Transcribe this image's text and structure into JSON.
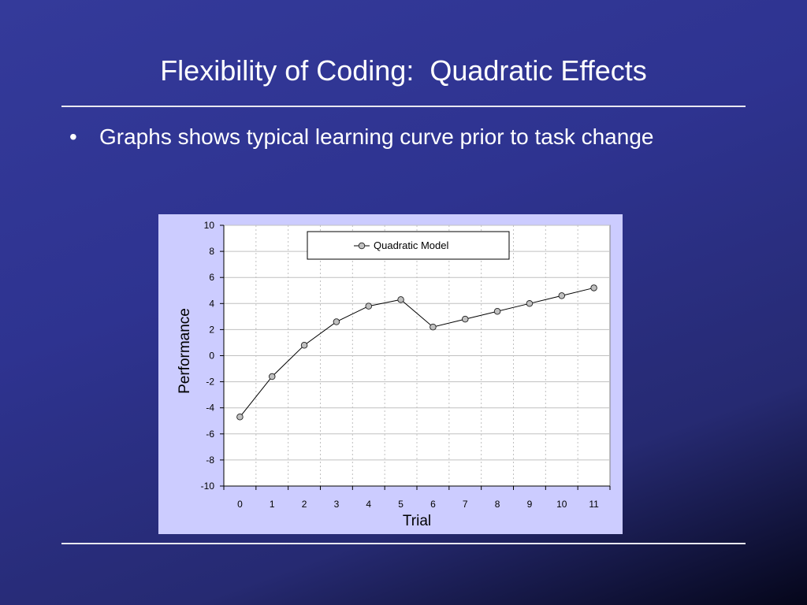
{
  "slide": {
    "title": "Flexibility of Coding:  Quadratic Effects",
    "bullets": [
      {
        "mark": "•",
        "text": "Graphs shows typical learning curve prior to task change"
      }
    ]
  },
  "chart_data": {
    "type": "line",
    "title": "",
    "xlabel": "Trial",
    "ylabel": "Performance",
    "x": [
      0,
      1,
      2,
      3,
      4,
      5,
      6,
      7,
      8,
      9,
      10,
      11
    ],
    "series": [
      {
        "name": "Quadratic Model",
        "values": [
          -4.7,
          -1.6,
          0.8,
          2.6,
          3.8,
          4.3,
          2.2,
          2.8,
          3.4,
          4.0,
          4.6,
          5.2
        ]
      }
    ],
    "ylim": [
      -10,
      10
    ],
    "yticks": [
      10,
      8,
      6,
      4,
      2,
      0,
      -2,
      -4,
      -6,
      -8,
      -10
    ],
    "xticks": [
      "0",
      "1",
      "2",
      "3",
      "4",
      "5",
      "6",
      "7",
      "8",
      "9",
      "10",
      "11"
    ],
    "grid": true,
    "legend": "top-center",
    "colors": {
      "panel": "#ccccff",
      "plot": "#ffffff",
      "line": "#000000",
      "marker": "#c0c0c0",
      "grid": "#c0c0c0"
    }
  }
}
